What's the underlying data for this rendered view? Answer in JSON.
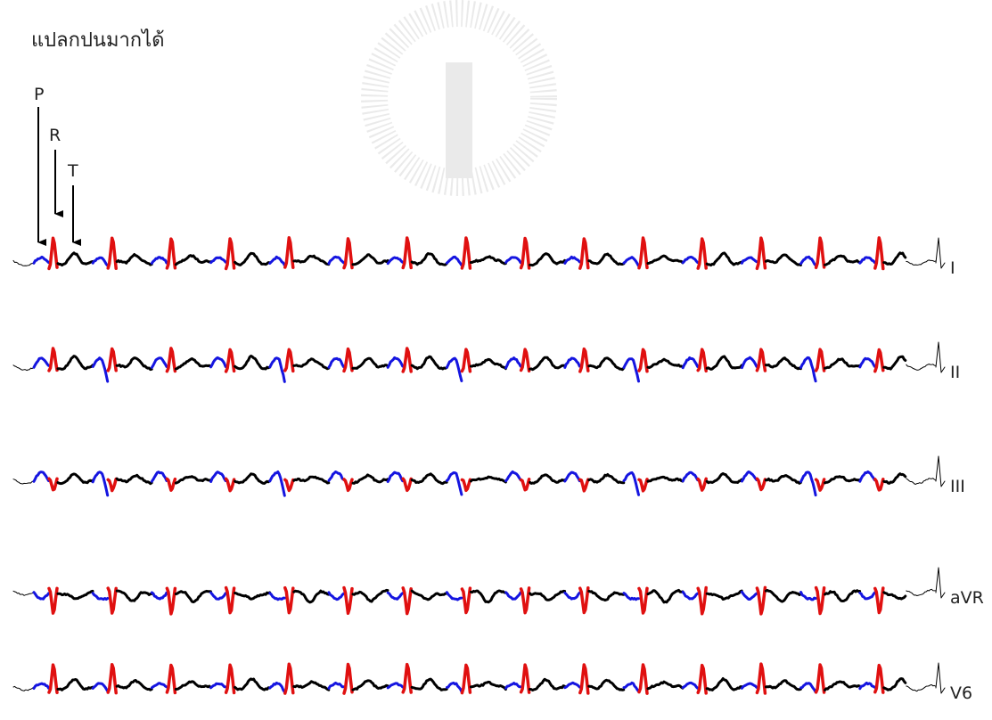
{
  "text": {
    "line": "แปลกปนมากได้"
  },
  "annotations": [
    "P",
    "R",
    "T"
  ],
  "leads": [
    "I",
    "II",
    "III",
    "aVR",
    "V6"
  ]
}
